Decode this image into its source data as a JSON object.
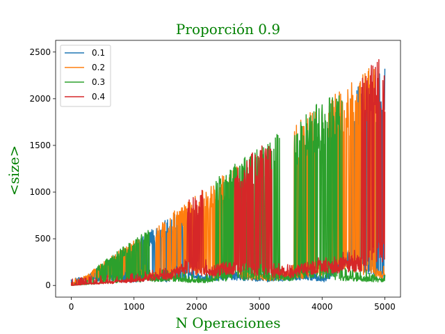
{
  "chart_data": {
    "type": "line",
    "title": "Proporción 0.9",
    "xlabel": "N Operaciones",
    "ylabel": "<size>",
    "xlim": [
      -250,
      5250
    ],
    "ylim": [
      -125,
      2625
    ],
    "xticks": [
      {
        "value": 0,
        "label": "0"
      },
      {
        "value": 1000,
        "label": "1000"
      },
      {
        "value": 2000,
        "label": "2000"
      },
      {
        "value": 3000,
        "label": "3000"
      },
      {
        "value": 4000,
        "label": "4000"
      },
      {
        "value": 5000,
        "label": "5000"
      }
    ],
    "yticks": [
      {
        "value": 0,
        "label": "0"
      },
      {
        "value": 500,
        "label": "500"
      },
      {
        "value": 1000,
        "label": "1000"
      },
      {
        "value": 1500,
        "label": "1500"
      },
      {
        "value": 2000,
        "label": "2000"
      },
      {
        "value": 2500,
        "label": "2500"
      }
    ],
    "grid": false,
    "legend_position": "top-left",
    "series": [
      {
        "name": "0.1",
        "color": "#1f77b4",
        "x_range": [
          0,
          5000
        ],
        "peak_growth_per_op": 0.465,
        "last_peak": 2350,
        "low_values": [
          0,
          60,
          80,
          50,
          80,
          60,
          120,
          60,
          100,
          80,
          60,
          80,
          100,
          60,
          300,
          220,
          100
        ],
        "spike_segments": [
          [
            0,
            1870
          ],
          [
            4450,
            5000
          ]
        ]
      },
      {
        "name": "0.2",
        "color": "#ff7f0e",
        "x_range": [
          0,
          5000
        ],
        "peak_growth_per_op": 0.49,
        "last_peak": 2450,
        "low_values": [
          0,
          40,
          100,
          150,
          100,
          80,
          200,
          120,
          150,
          100,
          80,
          100,
          120,
          200,
          250,
          150,
          100
        ],
        "spike_segments": [
          [
            200,
            1100
          ],
          [
            1350,
            2650
          ],
          [
            3550,
            3900
          ],
          [
            4100,
            4850
          ]
        ]
      },
      {
        "name": "0.3",
        "color": "#2ca02c",
        "x_range": [
          0,
          5000
        ],
        "peak_growth_per_op": 0.5,
        "last_peak": 2050,
        "low_values": [
          0,
          20,
          40,
          60,
          60,
          80,
          50,
          50,
          70,
          100,
          80,
          80,
          100,
          100,
          80,
          70,
          55
        ],
        "spike_segments": [
          [
            400,
            1250
          ],
          [
            2300,
            3320
          ],
          [
            3550,
            4330
          ]
        ]
      },
      {
        "name": "0.4",
        "color": "#d62728",
        "x_range": [
          0,
          5000
        ],
        "peak_growth_per_op": 0.495,
        "last_peak": 2480,
        "low_values": [
          0,
          20,
          30,
          50,
          80,
          100,
          200,
          150,
          180,
          200,
          150,
          120,
          180,
          200,
          220,
          250,
          400
        ],
        "spike_segments": [
          [
            1850,
            2100
          ],
          [
            2600,
            3200
          ],
          [
            4600,
            5000
          ]
        ]
      }
    ]
  }
}
